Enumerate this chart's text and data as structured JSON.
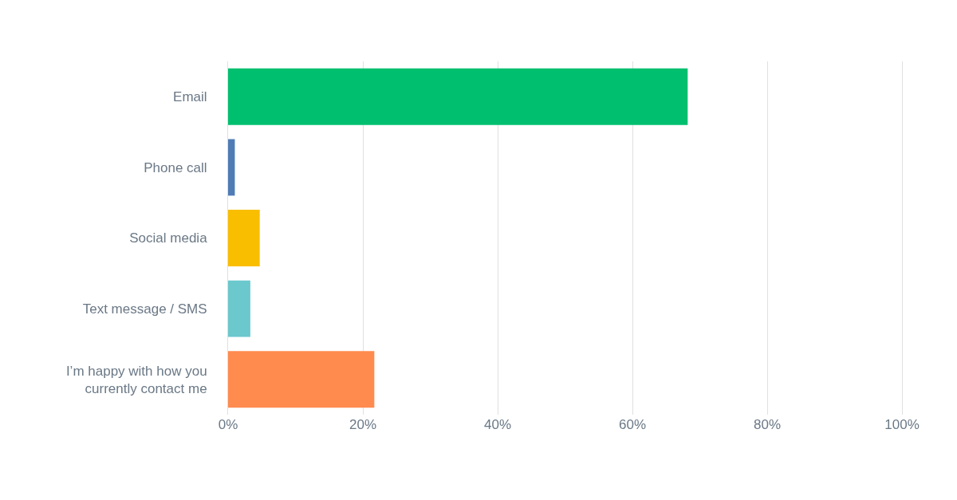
{
  "chart_data": {
    "type": "bar",
    "orientation": "horizontal",
    "categories": [
      "Email",
      "Phone call",
      "Social media",
      "Text message / SMS",
      "I’m happy with how you currently contact me"
    ],
    "values": [
      68.2,
      1,
      4.7,
      3.3,
      21.7
    ],
    "colors": [
      "#00bf6f",
      "#507cb6",
      "#f9be00",
      "#6bc8cd",
      "#ff8b4f"
    ],
    "xlim": [
      0,
      100
    ],
    "xticks": [
      {
        "value": 0,
        "label": "0%"
      },
      {
        "value": 20,
        "label": "20%"
      },
      {
        "value": 40,
        "label": "40%"
      },
      {
        "value": 60,
        "label": "60%"
      },
      {
        "value": 80,
        "label": "80%"
      },
      {
        "value": 100,
        "label": "100%"
      }
    ],
    "grid": "x"
  }
}
